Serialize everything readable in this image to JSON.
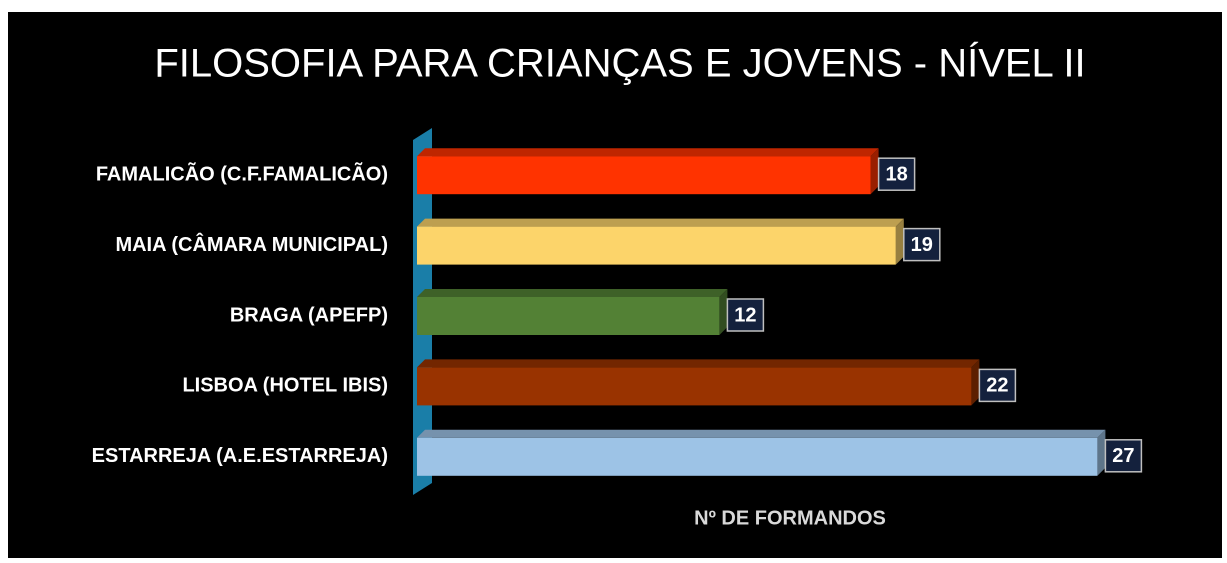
{
  "chart_data": {
    "type": "bar3d-horizontal",
    "title": "FILOSOFIA PARA CRIANÇAS E JOVENS - NÍVEL II",
    "x_label": "Nº DE FORMANDOS",
    "categories": [
      "FAMALICÃO (C.F.FAMALICÃO)",
      "MAIA (CÂMARA MUNICIPAL)",
      "BRAGA (APEFP)",
      "LISBOA (HOTEL IBIS)",
      "ESTARREJA (A.E.ESTARREJA)"
    ],
    "values": [
      18,
      19,
      12,
      22,
      27
    ],
    "colors": [
      "#ff3300",
      "#fcd46a",
      "#538135",
      "#993300",
      "#9dc3e6"
    ],
    "xlim": [
      0,
      30
    ]
  }
}
